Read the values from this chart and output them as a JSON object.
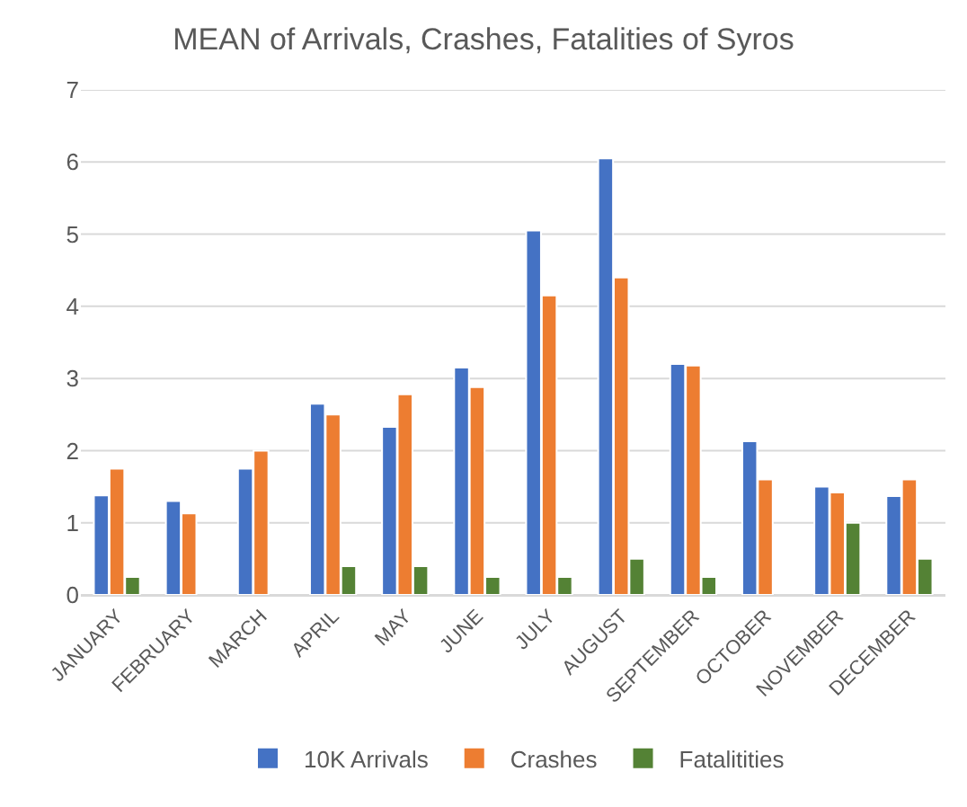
{
  "chart_data": {
    "type": "bar",
    "title": "MEAN of Arrivals, Crashes, Fatalities of Syros",
    "categories": [
      "JANUARY",
      "FEBRUARY",
      "MARCH",
      "APRIL",
      "MAY",
      "JUNE",
      "JULY",
      "AUGUST",
      "SEPTEMBER",
      "OCTOBER",
      "NOVEMBER",
      "DECEMBER"
    ],
    "series": [
      {
        "name": "10K Arrivals",
        "color": "#4472c4",
        "values": [
          1.38,
          1.3,
          1.75,
          2.65,
          2.33,
          3.15,
          5.05,
          6.05,
          3.2,
          2.13,
          1.5,
          1.37
        ]
      },
      {
        "name": "Crashes",
        "color": "#ed7d31",
        "values": [
          1.75,
          1.13,
          2.0,
          2.5,
          2.78,
          2.88,
          4.15,
          4.4,
          3.18,
          1.6,
          1.42,
          1.6
        ]
      },
      {
        "name": "Fatalitities",
        "color": "#548235",
        "values": [
          0.25,
          null,
          null,
          0.4,
          0.4,
          0.25,
          0.25,
          0.5,
          0.25,
          null,
          1.0,
          0.5
        ]
      }
    ],
    "ylim": [
      0,
      7
    ],
    "yticks": [
      0,
      1,
      2,
      3,
      4,
      5,
      6,
      7
    ],
    "grid": "y",
    "legend": "bottom"
  }
}
